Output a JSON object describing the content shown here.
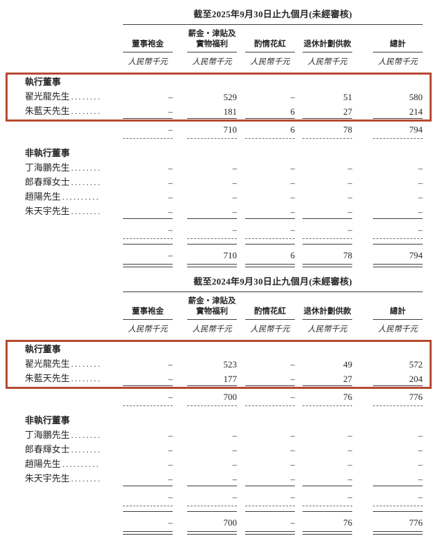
{
  "document": {
    "background": "#ffffff",
    "text_color": "#262626",
    "rule_color": "#3d3d3d",
    "highlight_border_color": "#b7492f",
    "currency_unit": "人民幣千元",
    "dash": "–"
  },
  "tables": [
    {
      "period_year": "2025",
      "title": "截至2025年9月30日止九個月(未經審核)",
      "columns": [
        {
          "lines": [
            "董事袍金"
          ]
        },
        {
          "lines": [
            "薪金‧津貼及",
            "實物福利"
          ]
        },
        {
          "lines": [
            "酌情花紅"
          ]
        },
        {
          "lines": [
            "退休計劃供款"
          ]
        },
        {
          "lines": [
            "總計"
          ]
        }
      ],
      "sections": [
        {
          "header": "執行董事",
          "highlighted": true,
          "rows": [
            {
              "name": "翟光龍先生",
              "leader": "........",
              "values": [
                "–",
                "529",
                "–",
                "51",
                "580"
              ]
            },
            {
              "name": "朱藍天先生",
              "leader": "........",
              "values": [
                "–",
                "181",
                "6",
                "27",
                "214"
              ]
            }
          ],
          "subtotal": [
            "–",
            "710",
            "6",
            "78",
            "794"
          ]
        },
        {
          "header": "非執行董事",
          "highlighted": false,
          "rows": [
            {
              "name": "丁海鵬先生",
              "leader": "........",
              "values": [
                "–",
                "–",
                "–",
                "–",
                "–"
              ]
            },
            {
              "name": "郎春輝女士",
              "leader": "........",
              "values": [
                "–",
                "–",
                "–",
                "–",
                "–"
              ]
            },
            {
              "name": "趙陽先生",
              "leader": "..........",
              "values": [
                "–",
                "–",
                "–",
                "–",
                "–"
              ]
            },
            {
              "name": "朱天宇先生",
              "leader": "........",
              "values": [
                "–",
                "–",
                "–",
                "–",
                "–"
              ]
            }
          ],
          "subtotal": [
            "–",
            "–",
            "–",
            "–",
            "–"
          ]
        }
      ],
      "total": [
        "–",
        "710",
        "6",
        "78",
        "794"
      ]
    },
    {
      "period_year": "2024",
      "title": "截至2024年9月30日止九個月(未經審核)",
      "columns": [
        {
          "lines": [
            "董事袍金"
          ]
        },
        {
          "lines": [
            "薪金‧津貼及",
            "實物福利"
          ]
        },
        {
          "lines": [
            "酌情花紅"
          ]
        },
        {
          "lines": [
            "退休計劃供款"
          ]
        },
        {
          "lines": [
            "總計"
          ]
        }
      ],
      "sections": [
        {
          "header": "執行董事",
          "highlighted": true,
          "rows": [
            {
              "name": "翟光龍先生",
              "leader": "........",
              "values": [
                "–",
                "523",
                "–",
                "49",
                "572"
              ]
            },
            {
              "name": "朱藍天先生",
              "leader": "........",
              "values": [
                "–",
                "177",
                "–",
                "27",
                "204"
              ]
            }
          ],
          "subtotal": [
            "–",
            "700",
            "–",
            "76",
            "776"
          ]
        },
        {
          "header": "非執行董事",
          "highlighted": false,
          "rows": [
            {
              "name": "丁海鵬先生",
              "leader": "........",
              "values": [
                "–",
                "–",
                "–",
                "–",
                "–"
              ]
            },
            {
              "name": "郎春輝女士",
              "leader": "........",
              "values": [
                "–",
                "–",
                "–",
                "–",
                "–"
              ]
            },
            {
              "name": "趙陽先生",
              "leader": "..........",
              "values": [
                "–",
                "–",
                "–",
                "–",
                "–"
              ]
            },
            {
              "name": "朱天宇先生",
              "leader": "........",
              "values": [
                "–",
                "–",
                "–",
                "–",
                "–"
              ]
            }
          ],
          "subtotal": [
            "–",
            "–",
            "–",
            "–",
            "–"
          ]
        }
      ],
      "total": [
        "–",
        "700",
        "–",
        "76",
        "776"
      ]
    }
  ]
}
